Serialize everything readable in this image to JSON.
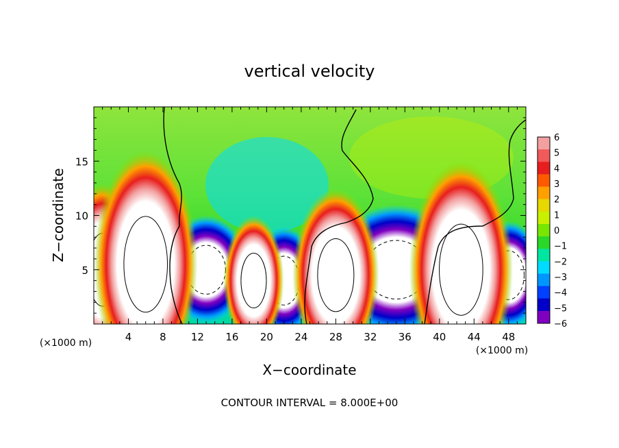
{
  "chart_data": {
    "type": "heatmap",
    "title": "vertical velocity",
    "xlabel": "X−coordinate",
    "ylabel": "Z−coordinate",
    "x_units_left": "(×1000 m)",
    "x_units_right": "(×1000 m)",
    "footer": "CONTOUR INTERVAL = 8.000E+00",
    "xlim": [
      0,
      50
    ],
    "ylim": [
      0,
      20
    ],
    "x_ticks": [
      4,
      8,
      12,
      16,
      20,
      24,
      28,
      32,
      36,
      40,
      44,
      48
    ],
    "y_ticks": [
      5,
      10,
      15
    ],
    "colorbar": {
      "range": [
        -6,
        6
      ],
      "ticks": [
        6,
        5,
        4,
        3,
        2,
        1,
        0,
        -1,
        -2,
        -3,
        -4,
        -5,
        -6
      ],
      "colors": [
        "#f2a0a0",
        "#f05a5a",
        "#e81e1e",
        "#ff5a00",
        "#ffa000",
        "#e6d800",
        "#c8f000",
        "#78e600",
        "#2ad82a",
        "#00e6a0",
        "#00dcff",
        "#0096ff",
        "#0040ff",
        "#0000c8",
        "#8000c0"
      ]
    },
    "updrafts": [
      {
        "x": 1,
        "z": 5,
        "w": 4,
        "h": 8
      },
      {
        "x": 6,
        "z": 5.5,
        "w": 6,
        "h": 10.5
      },
      {
        "x": 18.5,
        "z": 4,
        "w": 3.5,
        "h": 6
      },
      {
        "x": 28,
        "z": 4.5,
        "w": 5,
        "h": 8
      },
      {
        "x": 42.5,
        "z": 5,
        "w": 6,
        "h": 10
      }
    ],
    "downdrafts": [
      {
        "x": 13,
        "z": 5,
        "w": 5,
        "h": 5
      },
      {
        "x": 22,
        "z": 4,
        "w": 4,
        "h": 5
      },
      {
        "x": 35,
        "z": 5,
        "w": 8,
        "h": 6
      },
      {
        "x": 48,
        "z": 4.5,
        "w": 4,
        "h": 5
      }
    ]
  }
}
